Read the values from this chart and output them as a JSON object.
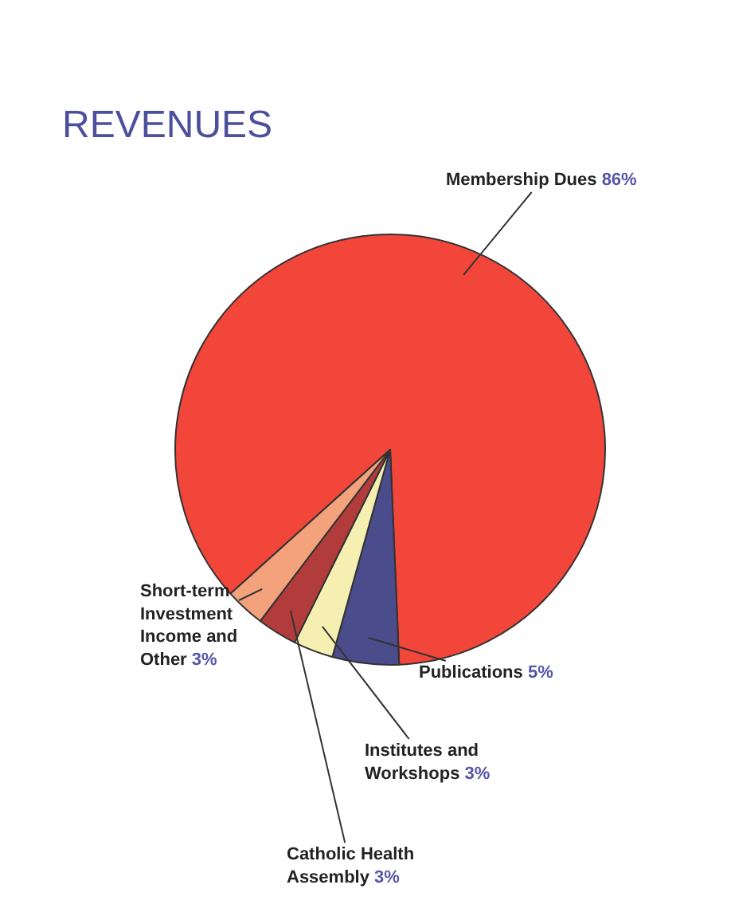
{
  "chart_data": {
    "type": "pie",
    "title": "REVENUES",
    "categories": [
      "Membership Dues",
      "Publications",
      "Institutes and Workshops",
      "Catholic Health Assembly",
      "Short-term Investment Income and Other"
    ],
    "values": [
      86,
      5,
      3,
      3,
      3
    ],
    "value_labels": [
      "86%",
      "5%",
      "3%",
      "3%",
      "3%"
    ],
    "colors": [
      "#f2463b",
      "#4b4c8c",
      "#f6efb2",
      "#b23b3b",
      "#f3a27c"
    ],
    "legend": false
  }
}
